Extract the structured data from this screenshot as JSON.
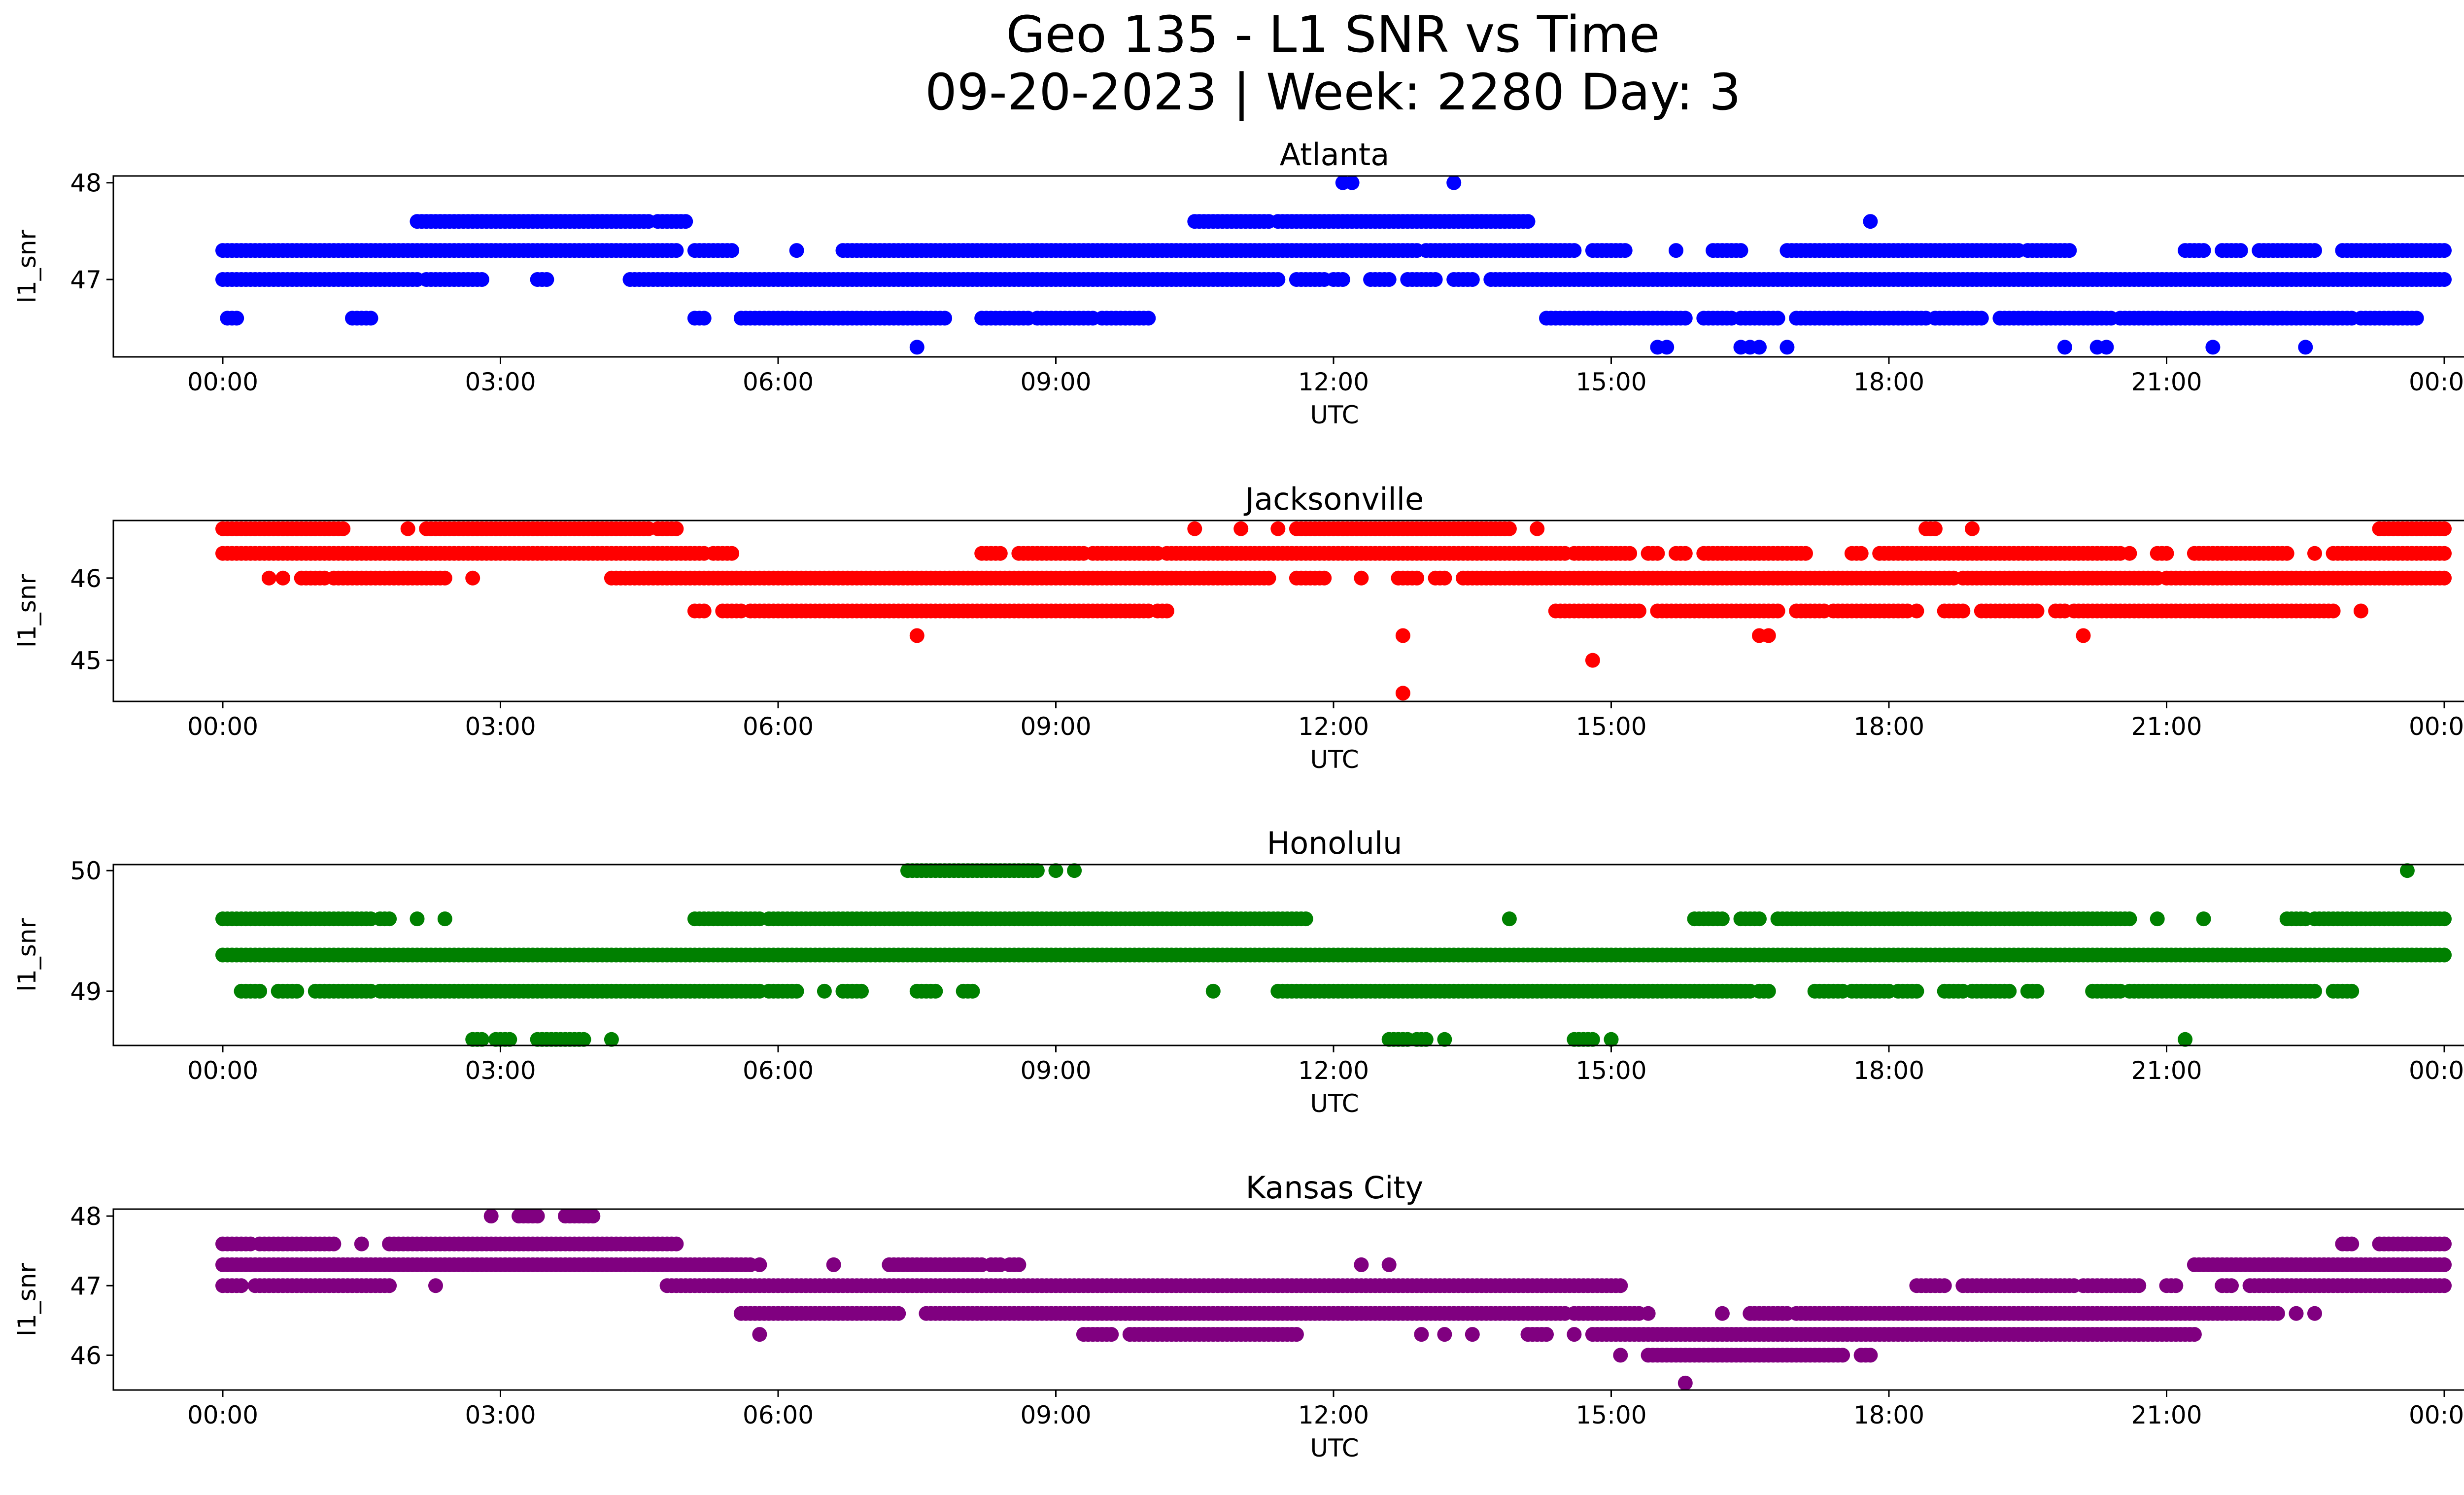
{
  "figure": {
    "title_line1": "Geo 135 - L1 SNR vs Time",
    "title_line2": "09-20-2023 | Week: 2280 Day: 3"
  },
  "chart_data": [
    {
      "type": "scatter",
      "title": "Atlanta",
      "xlabel": "UTC",
      "ylabel": "l1_snr",
      "color": "#0000ff",
      "xlim": [
        "00:00",
        "24:00"
      ],
      "ylim": [
        46.2,
        48.07
      ],
      "x_ticks": [
        "00:00",
        "03:00",
        "06:00",
        "09:00",
        "12:00",
        "15:00",
        "18:00",
        "21:00",
        "00:00"
      ],
      "y_ticks": [
        47,
        48
      ],
      "bands": [
        {
          "y": 47.3,
          "segments": [
            [
              0.0,
              4.9
            ],
            [
              5.1,
              5.5
            ],
            [
              6.2,
              6.2
            ],
            [
              6.7,
              12.9
            ],
            [
              13.0,
              14.6
            ],
            [
              14.8,
              15.15
            ],
            [
              15.7,
              15.7
            ],
            [
              16.1,
              16.4
            ],
            [
              16.9,
              19.4
            ],
            [
              19.5,
              19.95
            ],
            [
              21.2,
              21.4
            ],
            [
              21.6,
              21.8
            ],
            [
              22.0,
              22.6
            ],
            [
              22.9,
              24.0
            ]
          ],
          "step": 0.05
        },
        {
          "y": 47.0,
          "segments": [
            [
              0.0,
              2.1
            ],
            [
              2.2,
              2.8
            ],
            [
              3.4,
              3.5
            ],
            [
              4.4,
              11.4
            ],
            [
              11.6,
              11.9
            ],
            [
              12.0,
              12.1
            ],
            [
              12.4,
              12.6
            ],
            [
              12.8,
              13.1
            ],
            [
              13.3,
              13.5
            ],
            [
              13.7,
              24.0
            ]
          ],
          "step": 0.05
        },
        {
          "y": 47.6,
          "segments": [
            [
              2.1,
              4.6
            ],
            [
              4.7,
              5.0
            ],
            [
              10.5,
              11.3
            ],
            [
              11.4,
              14.1
            ],
            [
              17.8,
              17.8
            ]
          ],
          "step": 0.05
        },
        {
          "y": 46.6,
          "segments": [
            [
              0.05,
              0.15
            ],
            [
              1.4,
              1.6
            ],
            [
              5.1,
              5.2
            ],
            [
              5.6,
              7.8
            ],
            [
              8.2,
              8.7
            ],
            [
              8.8,
              9.4
            ],
            [
              9.5,
              10.0
            ],
            [
              14.3,
              15.8
            ],
            [
              16.0,
              16.3
            ],
            [
              16.4,
              16.8
            ],
            [
              17.0,
              18.4
            ],
            [
              18.5,
              19.0
            ],
            [
              19.2,
              20.4
            ],
            [
              20.5,
              23.0
            ],
            [
              23.1,
              23.7
            ]
          ],
          "step": 0.05
        },
        {
          "y": 46.3,
          "segments": [
            [
              7.5,
              7.5
            ],
            [
              15.5,
              15.6
            ],
            [
              16.4,
              16.6
            ],
            [
              16.9,
              16.9
            ],
            [
              19.9,
              19.9
            ],
            [
              20.25,
              20.35
            ],
            [
              21.5,
              21.5
            ],
            [
              22.5,
              22.5
            ]
          ],
          "step": 0.1
        },
        {
          "y": 48.0,
          "segments": [
            [
              12.1,
              12.2
            ],
            [
              13.3,
              13.3
            ]
          ],
          "step": 0.1
        }
      ]
    },
    {
      "type": "scatter",
      "title": "Jacksonville",
      "xlabel": "UTC",
      "ylabel": "l1_snr",
      "color": "#ff0000",
      "xlim": [
        "00:00",
        "24:00"
      ],
      "ylim": [
        44.5,
        46.7
      ],
      "x_ticks": [
        "00:00",
        "03:00",
        "06:00",
        "09:00",
        "12:00",
        "15:00",
        "18:00",
        "21:00",
        "00:00"
      ],
      "y_ticks": [
        45,
        46
      ],
      "bands": [
        {
          "y": 46.6,
          "segments": [
            [
              0.0,
              1.3
            ],
            [
              2.0,
              2.0
            ],
            [
              2.2,
              4.6
            ],
            [
              4.7,
              4.9
            ],
            [
              10.5,
              10.5
            ],
            [
              11.0,
              11.0
            ],
            [
              11.4,
              11.4
            ],
            [
              11.6,
              13.9
            ],
            [
              14.2,
              14.2
            ],
            [
              18.4,
              18.5
            ],
            [
              18.9,
              18.9
            ],
            [
              23.3,
              24.0
            ]
          ],
          "step": 0.05
        },
        {
          "y": 46.3,
          "segments": [
            [
              0.0,
              5.2
            ],
            [
              5.3,
              5.5
            ],
            [
              8.2,
              8.4
            ],
            [
              8.6,
              9.3
            ],
            [
              9.4,
              10.1
            ],
            [
              10.2,
              14.5
            ],
            [
              14.6,
              15.2
            ],
            [
              15.4,
              15.5
            ],
            [
              15.7,
              15.8
            ],
            [
              16.0,
              17.1
            ],
            [
              17.6,
              17.7
            ],
            [
              17.9,
              20.5
            ],
            [
              20.6,
              20.6
            ],
            [
              20.9,
              21.0
            ],
            [
              21.3,
              22.3
            ],
            [
              22.6,
              22.6
            ],
            [
              22.8,
              24.0
            ]
          ],
          "step": 0.05
        },
        {
          "y": 46.0,
          "segments": [
            [
              0.5,
              0.5
            ],
            [
              0.65,
              0.65
            ],
            [
              0.85,
              1.1
            ],
            [
              1.2,
              2.4
            ],
            [
              2.7,
              2.7
            ],
            [
              4.2,
              11.3
            ],
            [
              11.6,
              11.9
            ],
            [
              12.3,
              12.3
            ],
            [
              12.7,
              12.9
            ],
            [
              13.1,
              13.2
            ],
            [
              13.4,
              18.7
            ],
            [
              18.8,
              20.9
            ],
            [
              21.0,
              24.0
            ]
          ],
          "step": 0.05
        },
        {
          "y": 45.6,
          "segments": [
            [
              5.1,
              5.2
            ],
            [
              5.4,
              5.6
            ],
            [
              5.7,
              10.0
            ],
            [
              10.1,
              10.2
            ],
            [
              14.4,
              15.3
            ],
            [
              15.5,
              16.8
            ],
            [
              17.0,
              17.3
            ],
            [
              17.4,
              18.2
            ],
            [
              18.3,
              18.3
            ],
            [
              18.6,
              18.8
            ],
            [
              19.0,
              19.6
            ],
            [
              19.8,
              19.9
            ],
            [
              20.0,
              22.8
            ],
            [
              23.1,
              23.1
            ]
          ],
          "step": 0.05
        },
        {
          "y": 45.3,
          "segments": [
            [
              7.5,
              7.5
            ],
            [
              12.75,
              12.75
            ],
            [
              16.6,
              16.7
            ],
            [
              20.1,
              20.1
            ]
          ],
          "step": 0.1
        },
        {
          "y": 45.0,
          "segments": [
            [
              14.8,
              14.8
            ]
          ],
          "step": 0.1
        },
        {
          "y": 44.6,
          "segments": [
            [
              12.75,
              12.75
            ]
          ],
          "step": 0.1
        }
      ]
    },
    {
      "type": "scatter",
      "title": "Honolulu",
      "xlabel": "UTC",
      "ylabel": "l1_snr",
      "color": "#008000",
      "xlim": [
        "00:00",
        "24:00"
      ],
      "ylim": [
        48.55,
        50.05
      ],
      "x_ticks": [
        "00:00",
        "03:00",
        "06:00",
        "09:00",
        "12:00",
        "15:00",
        "18:00",
        "21:00",
        "00:00"
      ],
      "y_ticks": [
        49,
        50
      ],
      "bands": [
        {
          "y": 50.0,
          "segments": [
            [
              7.4,
              8.8
            ],
            [
              9.0,
              9.0
            ],
            [
              9.2,
              9.2
            ],
            [
              23.6,
              23.6
            ]
          ],
          "step": 0.05
        },
        {
          "y": 49.6,
          "segments": [
            [
              0.0,
              1.6
            ],
            [
              1.7,
              1.8
            ],
            [
              2.1,
              2.1
            ],
            [
              2.4,
              2.4
            ],
            [
              5.1,
              5.8
            ],
            [
              5.9,
              11.7
            ],
            [
              13.9,
              13.9
            ],
            [
              15.9,
              16.2
            ],
            [
              16.4,
              16.6
            ],
            [
              16.8,
              20.6
            ],
            [
              20.9,
              20.9
            ],
            [
              21.4,
              21.4
            ],
            [
              22.3,
              22.5
            ],
            [
              22.6,
              24.0
            ]
          ],
          "step": 0.05
        },
        {
          "y": 49.3,
          "segments": [
            [
              0.0,
              24.0
            ]
          ],
          "step": 0.05
        },
        {
          "y": 49.0,
          "segments": [
            [
              0.2,
              0.4
            ],
            [
              0.6,
              0.8
            ],
            [
              1.0,
              1.6
            ],
            [
              1.7,
              5.8
            ],
            [
              5.9,
              6.2
            ],
            [
              6.5,
              6.5
            ],
            [
              6.7,
              6.9
            ],
            [
              7.5,
              7.7
            ],
            [
              8.0,
              8.1
            ],
            [
              10.7,
              10.7
            ],
            [
              11.4,
              16.5
            ],
            [
              16.6,
              16.7
            ],
            [
              17.2,
              17.5
            ],
            [
              17.6,
              18.0
            ],
            [
              18.1,
              18.3
            ],
            [
              18.6,
              18.8
            ],
            [
              18.9,
              19.3
            ],
            [
              19.5,
              19.6
            ],
            [
              20.2,
              20.5
            ],
            [
              20.6,
              22.6
            ],
            [
              22.8,
              23.0
            ]
          ],
          "step": 0.05
        },
        {
          "y": 48.6,
          "segments": [
            [
              2.7,
              2.8
            ],
            [
              2.95,
              3.1
            ],
            [
              3.4,
              3.9
            ],
            [
              4.2,
              4.2
            ],
            [
              12.6,
              12.8
            ],
            [
              12.9,
              13.0
            ],
            [
              13.2,
              13.2
            ],
            [
              14.6,
              14.8
            ],
            [
              15.0,
              15.0
            ],
            [
              21.2,
              21.2
            ]
          ],
          "step": 0.05
        }
      ]
    },
    {
      "type": "scatter",
      "title": "Kansas City",
      "xlabel": "UTC",
      "ylabel": "l1_snr",
      "color": "#800080",
      "xlim": [
        "00:00",
        "24:00"
      ],
      "ylim": [
        45.5,
        48.1
      ],
      "x_ticks": [
        "00:00",
        "03:00",
        "06:00",
        "09:00",
        "12:00",
        "15:00",
        "18:00",
        "21:00",
        "00:00"
      ],
      "y_ticks": [
        46,
        47,
        48
      ],
      "bands": [
        {
          "y": 48.0,
          "segments": [
            [
              2.9,
              2.9
            ],
            [
              3.2,
              3.4
            ],
            [
              3.7,
              4.0
            ]
          ],
          "step": 0.05
        },
        {
          "y": 47.6,
          "segments": [
            [
              0.0,
              0.3
            ],
            [
              0.4,
              1.2
            ],
            [
              1.5,
              1.5
            ],
            [
              1.8,
              4.9
            ],
            [
              22.9,
              23.0
            ],
            [
              23.3,
              24.0
            ]
          ],
          "step": 0.05
        },
        {
          "y": 47.3,
          "segments": [
            [
              0.0,
              5.7
            ],
            [
              5.8,
              5.8
            ],
            [
              6.6,
              6.6
            ],
            [
              7.2,
              8.2
            ],
            [
              8.3,
              8.4
            ],
            [
              8.5,
              8.6
            ],
            [
              12.3,
              12.3
            ],
            [
              12.6,
              12.6
            ],
            [
              21.3,
              24.0
            ]
          ],
          "step": 0.05
        },
        {
          "y": 47.0,
          "segments": [
            [
              0.0,
              0.2
            ],
            [
              0.35,
              1.8
            ],
            [
              2.3,
              2.3
            ],
            [
              4.8,
              15.1
            ],
            [
              18.3,
              18.6
            ],
            [
              18.8,
              20.0
            ],
            [
              20.1,
              20.7
            ],
            [
              21.0,
              21.1
            ],
            [
              21.6,
              21.7
            ],
            [
              21.9,
              24.0
            ]
          ],
          "step": 0.05
        },
        {
          "y": 46.6,
          "segments": [
            [
              5.6,
              7.3
            ],
            [
              7.6,
              14.5
            ],
            [
              14.6,
              15.3
            ],
            [
              15.4,
              15.4
            ],
            [
              16.2,
              16.2
            ],
            [
              16.5,
              16.9
            ],
            [
              17.0,
              22.2
            ],
            [
              22.4,
              22.4
            ],
            [
              22.6,
              22.6
            ]
          ],
          "step": 0.05
        },
        {
          "y": 46.3,
          "segments": [
            [
              5.8,
              5.8
            ],
            [
              9.3,
              9.6
            ],
            [
              9.8,
              11.6
            ],
            [
              12.95,
              12.95
            ],
            [
              13.2,
              13.2
            ],
            [
              13.5,
              13.5
            ],
            [
              14.1,
              14.3
            ],
            [
              14.6,
              14.6
            ],
            [
              14.8,
              21.3
            ]
          ],
          "step": 0.05
        },
        {
          "y": 46.0,
          "segments": [
            [
              15.1,
              15.1
            ],
            [
              15.4,
              17.5
            ],
            [
              17.7,
              17.8
            ]
          ],
          "step": 0.05
        },
        {
          "y": 45.6,
          "segments": [
            [
              15.8,
              15.8
            ]
          ],
          "step": 0.1
        }
      ]
    }
  ]
}
